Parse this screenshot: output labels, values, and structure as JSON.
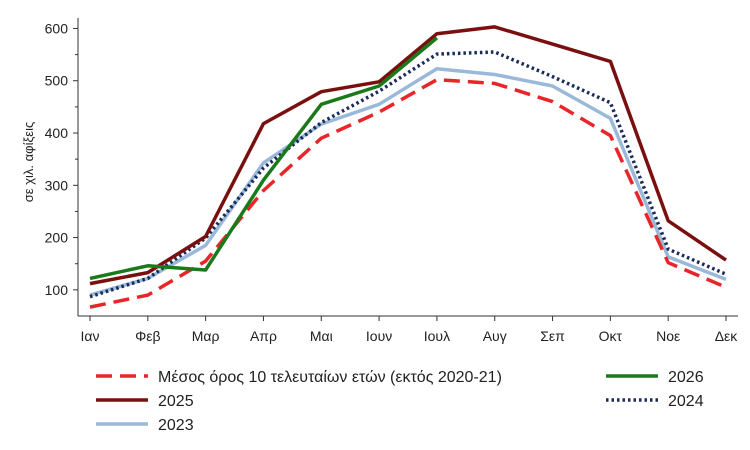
{
  "chart_data": {
    "type": "line",
    "title": "",
    "xlabel": "",
    "ylabel": "σε χιλ. αφίξεις",
    "categories": [
      "Ιαν",
      "Φεβ",
      "Μαρ",
      "Απρ",
      "Μαι",
      "Ιουν",
      "Ιουλ",
      "Αυγ",
      "Σεπ",
      "Οκτ",
      "Νοε",
      "Δεκ"
    ],
    "ylim": [
      50,
      620
    ],
    "yticks": [
      100,
      200,
      300,
      400,
      500,
      600
    ],
    "grid": false,
    "legend_position": "bottom",
    "series": [
      {
        "name": "Μέσος όρος 10 τελευταίων ετών (εκτός 2020-21)",
        "color": "#e8262a",
        "style": "dashed",
        "values": [
          67,
          90,
          155,
          290,
          390,
          440,
          502,
          495,
          460,
          395,
          152,
          105
        ]
      },
      {
        "name": "2026",
        "color": "#1a7a1a",
        "style": "solid",
        "values": [
          122,
          146,
          138,
          310,
          455,
          490,
          582,
          null,
          null,
          null,
          null,
          null
        ]
      },
      {
        "name": "2025",
        "color": "#7a0f0f",
        "style": "solid",
        "values": [
          112,
          133,
          202,
          418,
          479,
          498,
          590,
          603,
          570,
          537,
          232,
          157
        ]
      },
      {
        "name": "2024",
        "color": "#1a2a5a",
        "style": "dotted",
        "values": [
          87,
          122,
          199,
          333,
          420,
          480,
          551,
          555,
          508,
          458,
          178,
          130
        ]
      },
      {
        "name": "2023",
        "color": "#9ab9d9",
        "style": "solid",
        "values": [
          90,
          122,
          185,
          343,
          417,
          455,
          523,
          512,
          490,
          428,
          163,
          120
        ]
      }
    ]
  }
}
